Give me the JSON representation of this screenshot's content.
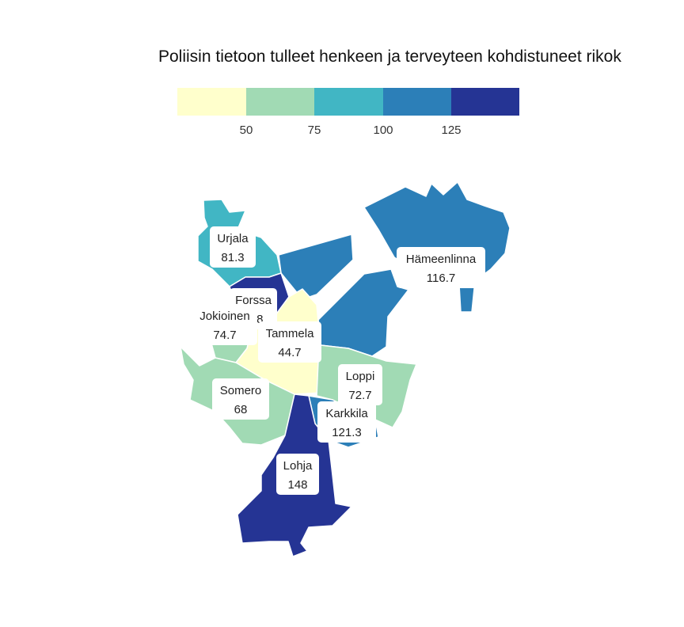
{
  "title": "Poliisin tietoon tulleet henkeen ja terveyteen kohdistuneet rikok",
  "legend": {
    "ticks": [
      "50",
      "75",
      "100",
      "125"
    ],
    "colors": [
      "#ffffcc",
      "#a1dab4",
      "#41b6c4",
      "#2c7fb8",
      "#253494"
    ]
  },
  "regions": [
    {
      "name": "Urjala",
      "value": "81.3",
      "color": "#41b6c4"
    },
    {
      "name": "Forssa",
      "value": "148",
      "color": "#253494"
    },
    {
      "name": "Jokioinen",
      "value": "74.7",
      "color": "#a1dab4"
    },
    {
      "name": "Tammela",
      "value": "44.7",
      "color": "#ffffcc"
    },
    {
      "name": "Hämeenlinna",
      "value": "116.7",
      "color": "#2c7fb8"
    },
    {
      "name": "Somero",
      "value": "68",
      "color": "#a1dab4"
    },
    {
      "name": "Loppi",
      "value": "72.7",
      "color": "#a1dab4"
    },
    {
      "name": "Karkkila",
      "value": "121.3",
      "color": "#2c7fb8"
    },
    {
      "name": "Lohja",
      "value": "148",
      "color": "#253494"
    }
  ]
}
